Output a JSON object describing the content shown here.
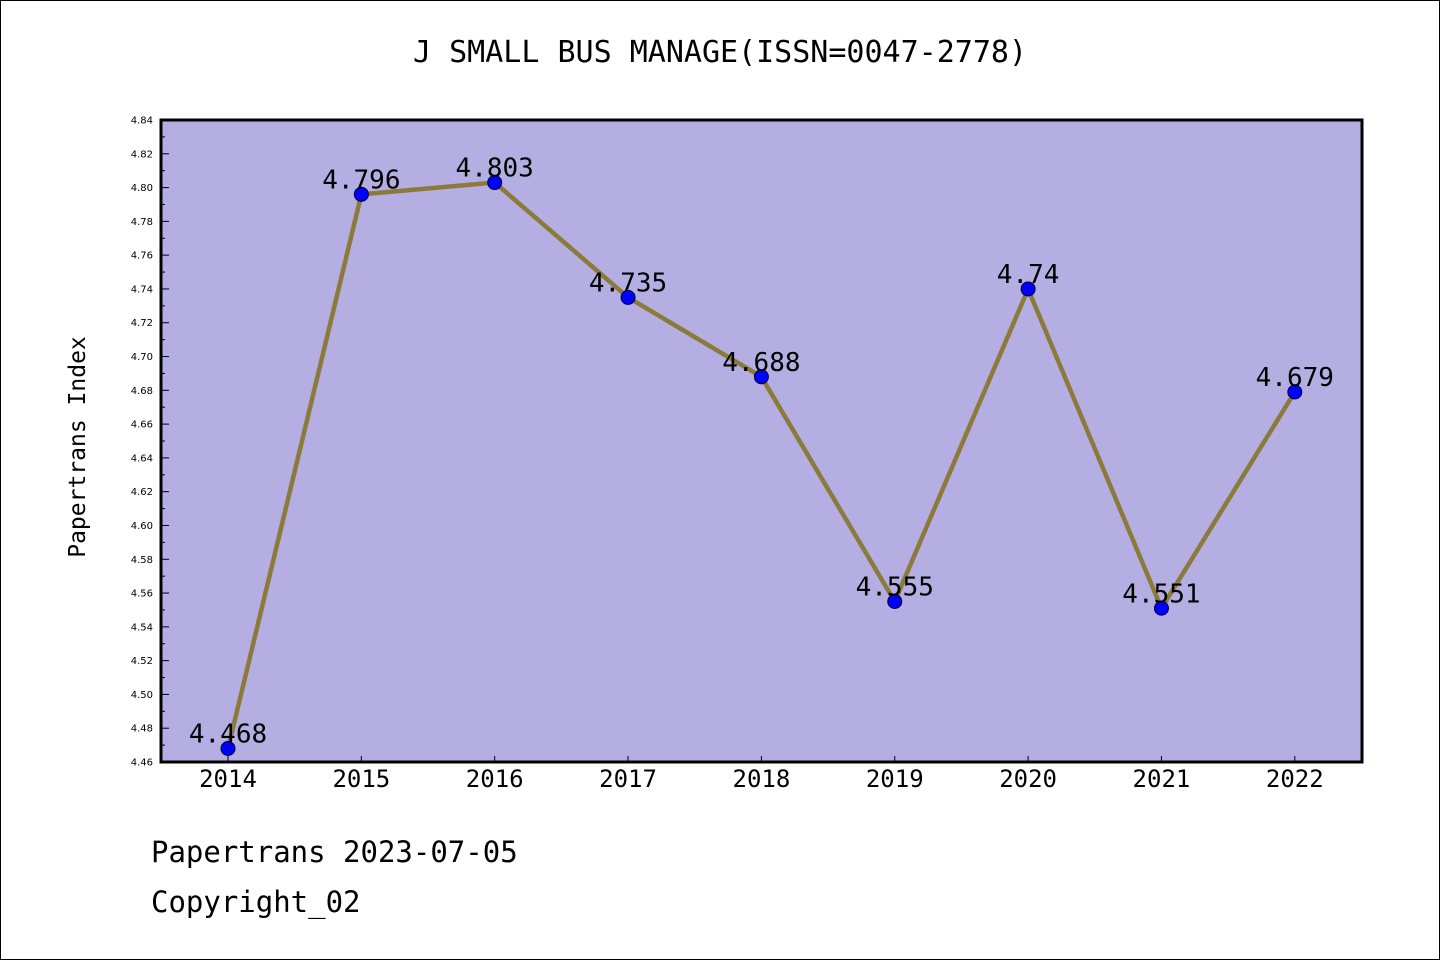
{
  "chart_data": {
    "type": "line",
    "title": "J SMALL BUS MANAGE(ISSN=0047-2778)",
    "ylabel": "Papertrans Index",
    "xlabel": "",
    "categories": [
      "2014",
      "2015",
      "2016",
      "2017",
      "2018",
      "2019",
      "2020",
      "2021",
      "2022"
    ],
    "series": [
      {
        "values": [
          4.468,
          4.796,
          4.803,
          4.735,
          4.688,
          4.555,
          4.74,
          4.551,
          4.679
        ],
        "value_labels": [
          "4.468",
          "4.796",
          "4.803",
          "4.735",
          "4.688",
          "4.555",
          "4.74",
          "4.551",
          "4.679"
        ]
      }
    ],
    "ylim": [
      4.46,
      4.84
    ],
    "y_ticks": [
      "4.46",
      "4.48",
      "4.50",
      "4.52",
      "4.54",
      "4.56",
      "4.58",
      "4.60",
      "4.62",
      "4.64",
      "4.66",
      "4.68",
      "4.70",
      "4.72",
      "4.74",
      "4.76",
      "4.78",
      "4.80",
      "4.82",
      "4.84"
    ],
    "grid": false,
    "legend": "none",
    "colors": {
      "plot_background": "#b4aee2",
      "line": "#8b7a3a",
      "marker": "#0000ff"
    }
  },
  "footer": {
    "date_text": "Papertrans 2023-07-05",
    "copyright_text": "Copyright_02"
  }
}
